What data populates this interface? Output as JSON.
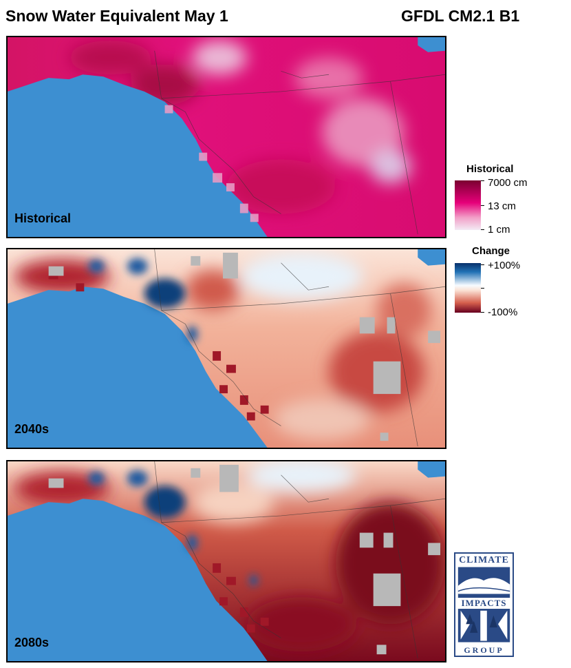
{
  "header": {
    "title": "Snow Water Equivalent May 1",
    "model": "GFDL CM2.1 B1"
  },
  "panels": [
    {
      "label": "Historical"
    },
    {
      "label": "2040s"
    },
    {
      "label": "2080s"
    }
  ],
  "legend_historical": {
    "title": "Historical",
    "ticks": [
      "7000 cm",
      "13 cm",
      "1 cm"
    ],
    "colors": [
      "#7a0030",
      "#e6007a",
      "#f3eaf4"
    ]
  },
  "legend_change": {
    "title": "Change",
    "ticks": [
      "+100%",
      "-100%"
    ],
    "colors": [
      "#08306b",
      "#f7fbff",
      "#67001f"
    ]
  },
  "logo": {
    "top": "CLIMATE",
    "middle": "IMPACTS",
    "bottom": "GROUP"
  },
  "colors": {
    "ocean": "#3d8fd1",
    "no_data": "#b8b8b8"
  }
}
